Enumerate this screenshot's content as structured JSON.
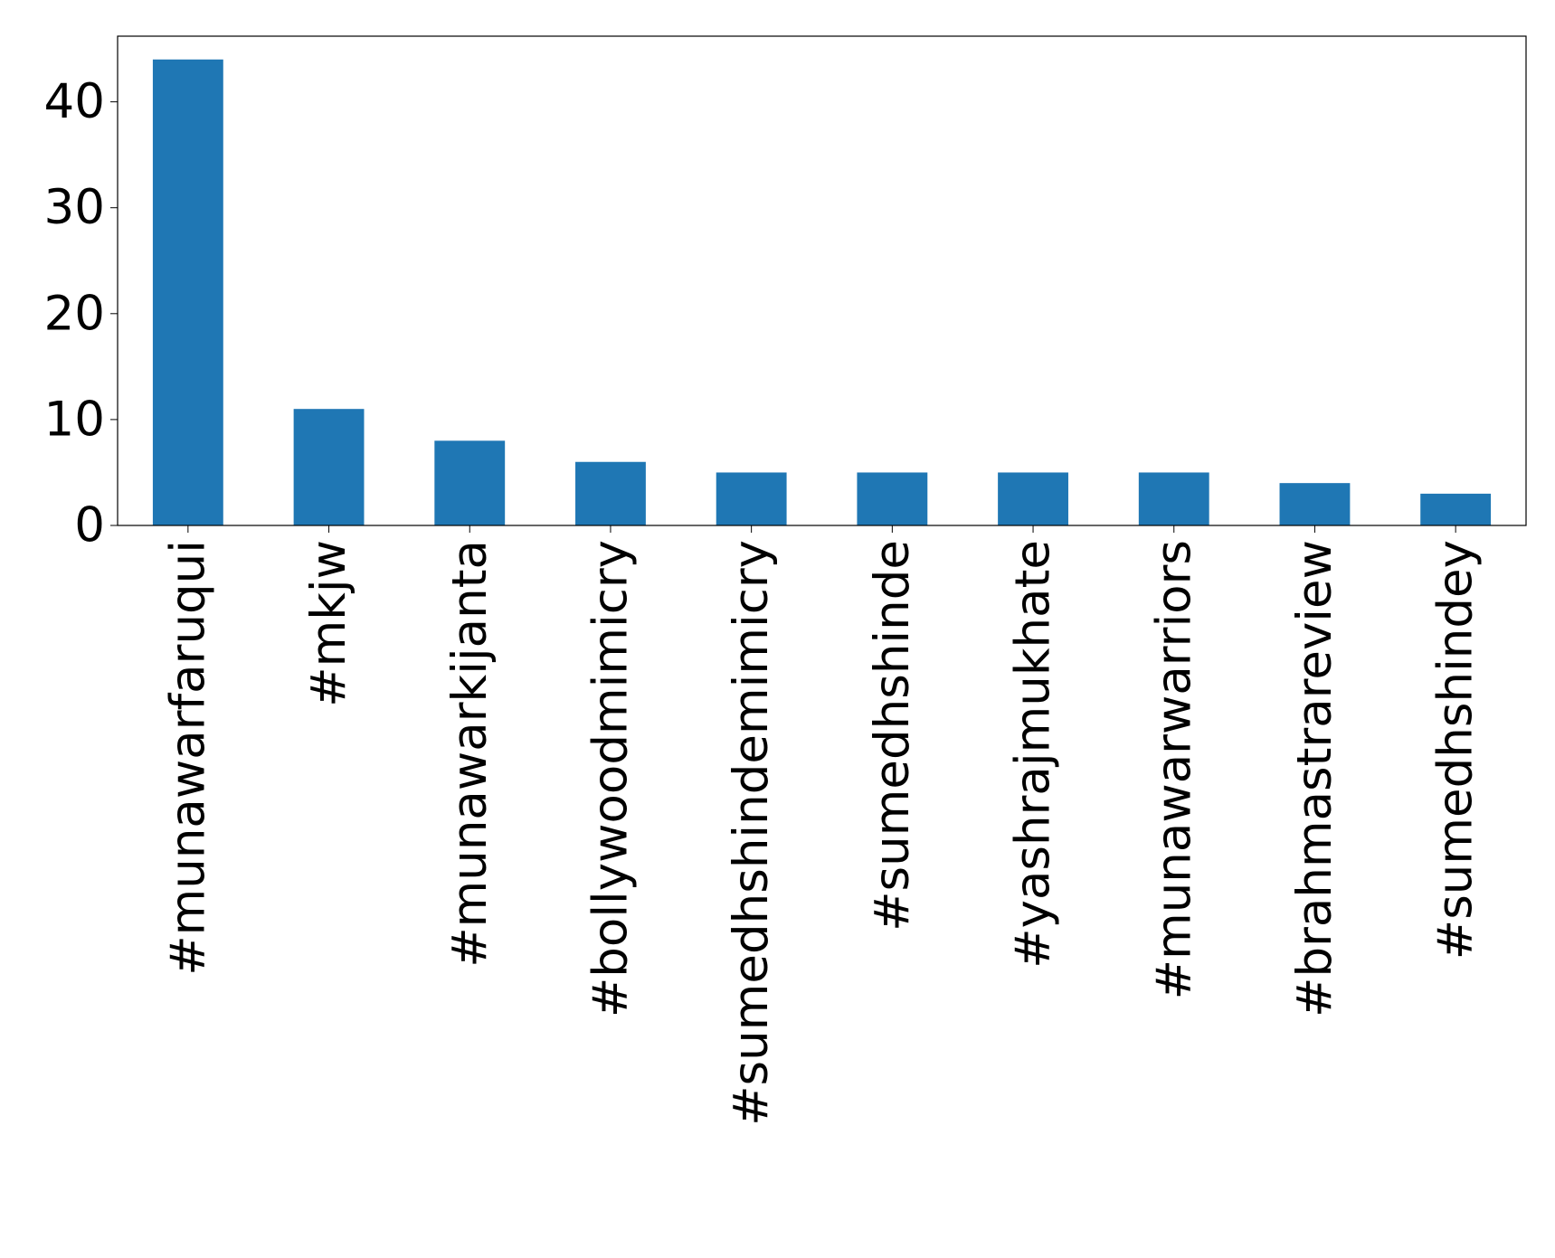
{
  "chart_data": {
    "type": "bar",
    "categories": [
      "#munawarfaruqui",
      "#mkjw",
      "#munawarkijanta",
      "#bollywoodmimicry",
      "#sumedhshindemimicry",
      "#sumedhshinde",
      "#yashrajmukhate",
      "#munawarwarriors",
      "#brahmastrareview",
      "#sumedhshindey"
    ],
    "values": [
      44,
      11,
      8,
      6,
      5,
      5,
      5,
      5,
      4,
      3
    ],
    "color": "#1f77b4",
    "ylim": [
      0,
      46.2
    ],
    "yticks": [
      0,
      10,
      20,
      30,
      40
    ],
    "grid": false
  }
}
